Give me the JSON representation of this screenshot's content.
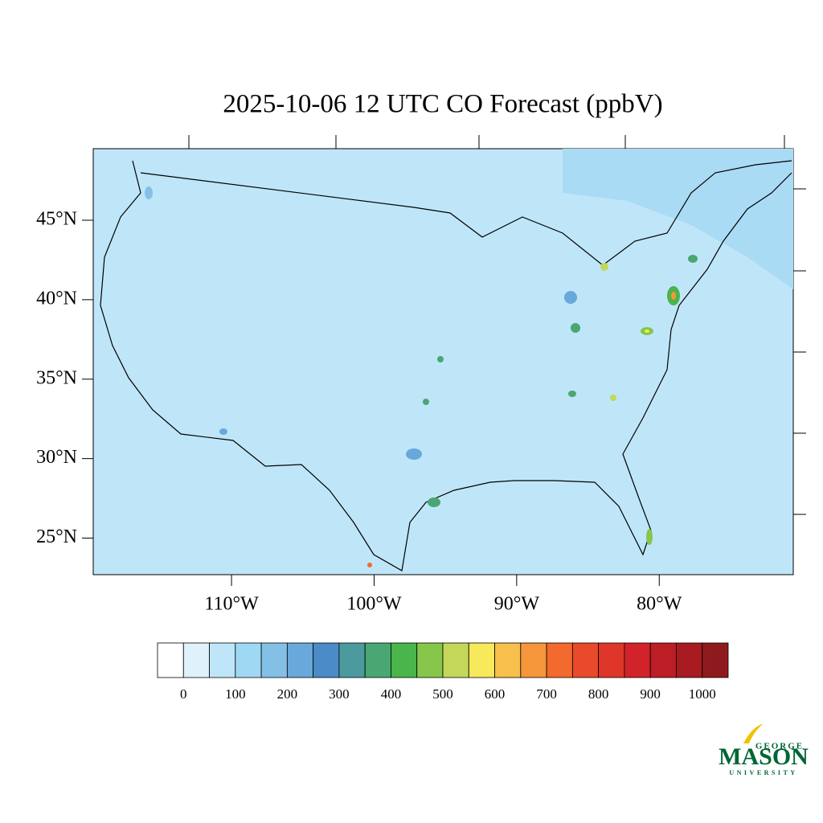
{
  "chart_data": {
    "type": "map",
    "title": "2025-10-06 12 UTC CO Forecast (ppbV)",
    "xlim": [
      -119.7,
      -70.6
    ],
    "ylim": [
      22.7,
      49.5
    ],
    "xticks": [
      {
        "value": -110,
        "label": "110°W"
      },
      {
        "value": -100,
        "label": "100°W"
      },
      {
        "value": -90,
        "label": "90°W"
      },
      {
        "value": -80,
        "label": "80°W"
      }
    ],
    "yticks": [
      {
        "value": 45,
        "label": "45°N"
      },
      {
        "value": 40,
        "label": "40°N"
      },
      {
        "value": 35,
        "label": "35°N"
      },
      {
        "value": 30,
        "label": "30°N"
      },
      {
        "value": 25,
        "label": "25°N"
      }
    ],
    "colorbar_lim": [
      -50,
      1050
    ],
    "colorbar_ticks": [
      0,
      100,
      200,
      300,
      400,
      500,
      600,
      700,
      800,
      900,
      1000
    ],
    "colors": [
      "#ffffff",
      "#dff1fb",
      "#bfe6f8",
      "#9fd8f3",
      "#84c0e6",
      "#68a8da",
      "#4a8bc8",
      "#4a9a9e",
      "#4aa672",
      "#4ab54a",
      "#86c64b",
      "#c4d75a",
      "#f6e95a",
      "#f7bf4b",
      "#f5963a",
      "#f26a2d",
      "#e84a2a",
      "#e0362a",
      "#d2222a",
      "#bd1d25",
      "#a81b20",
      "#8f1a1d"
    ]
  },
  "logo": {
    "top": "GEORGE",
    "main": "MASON",
    "bottom": "UNIVERSITY"
  }
}
